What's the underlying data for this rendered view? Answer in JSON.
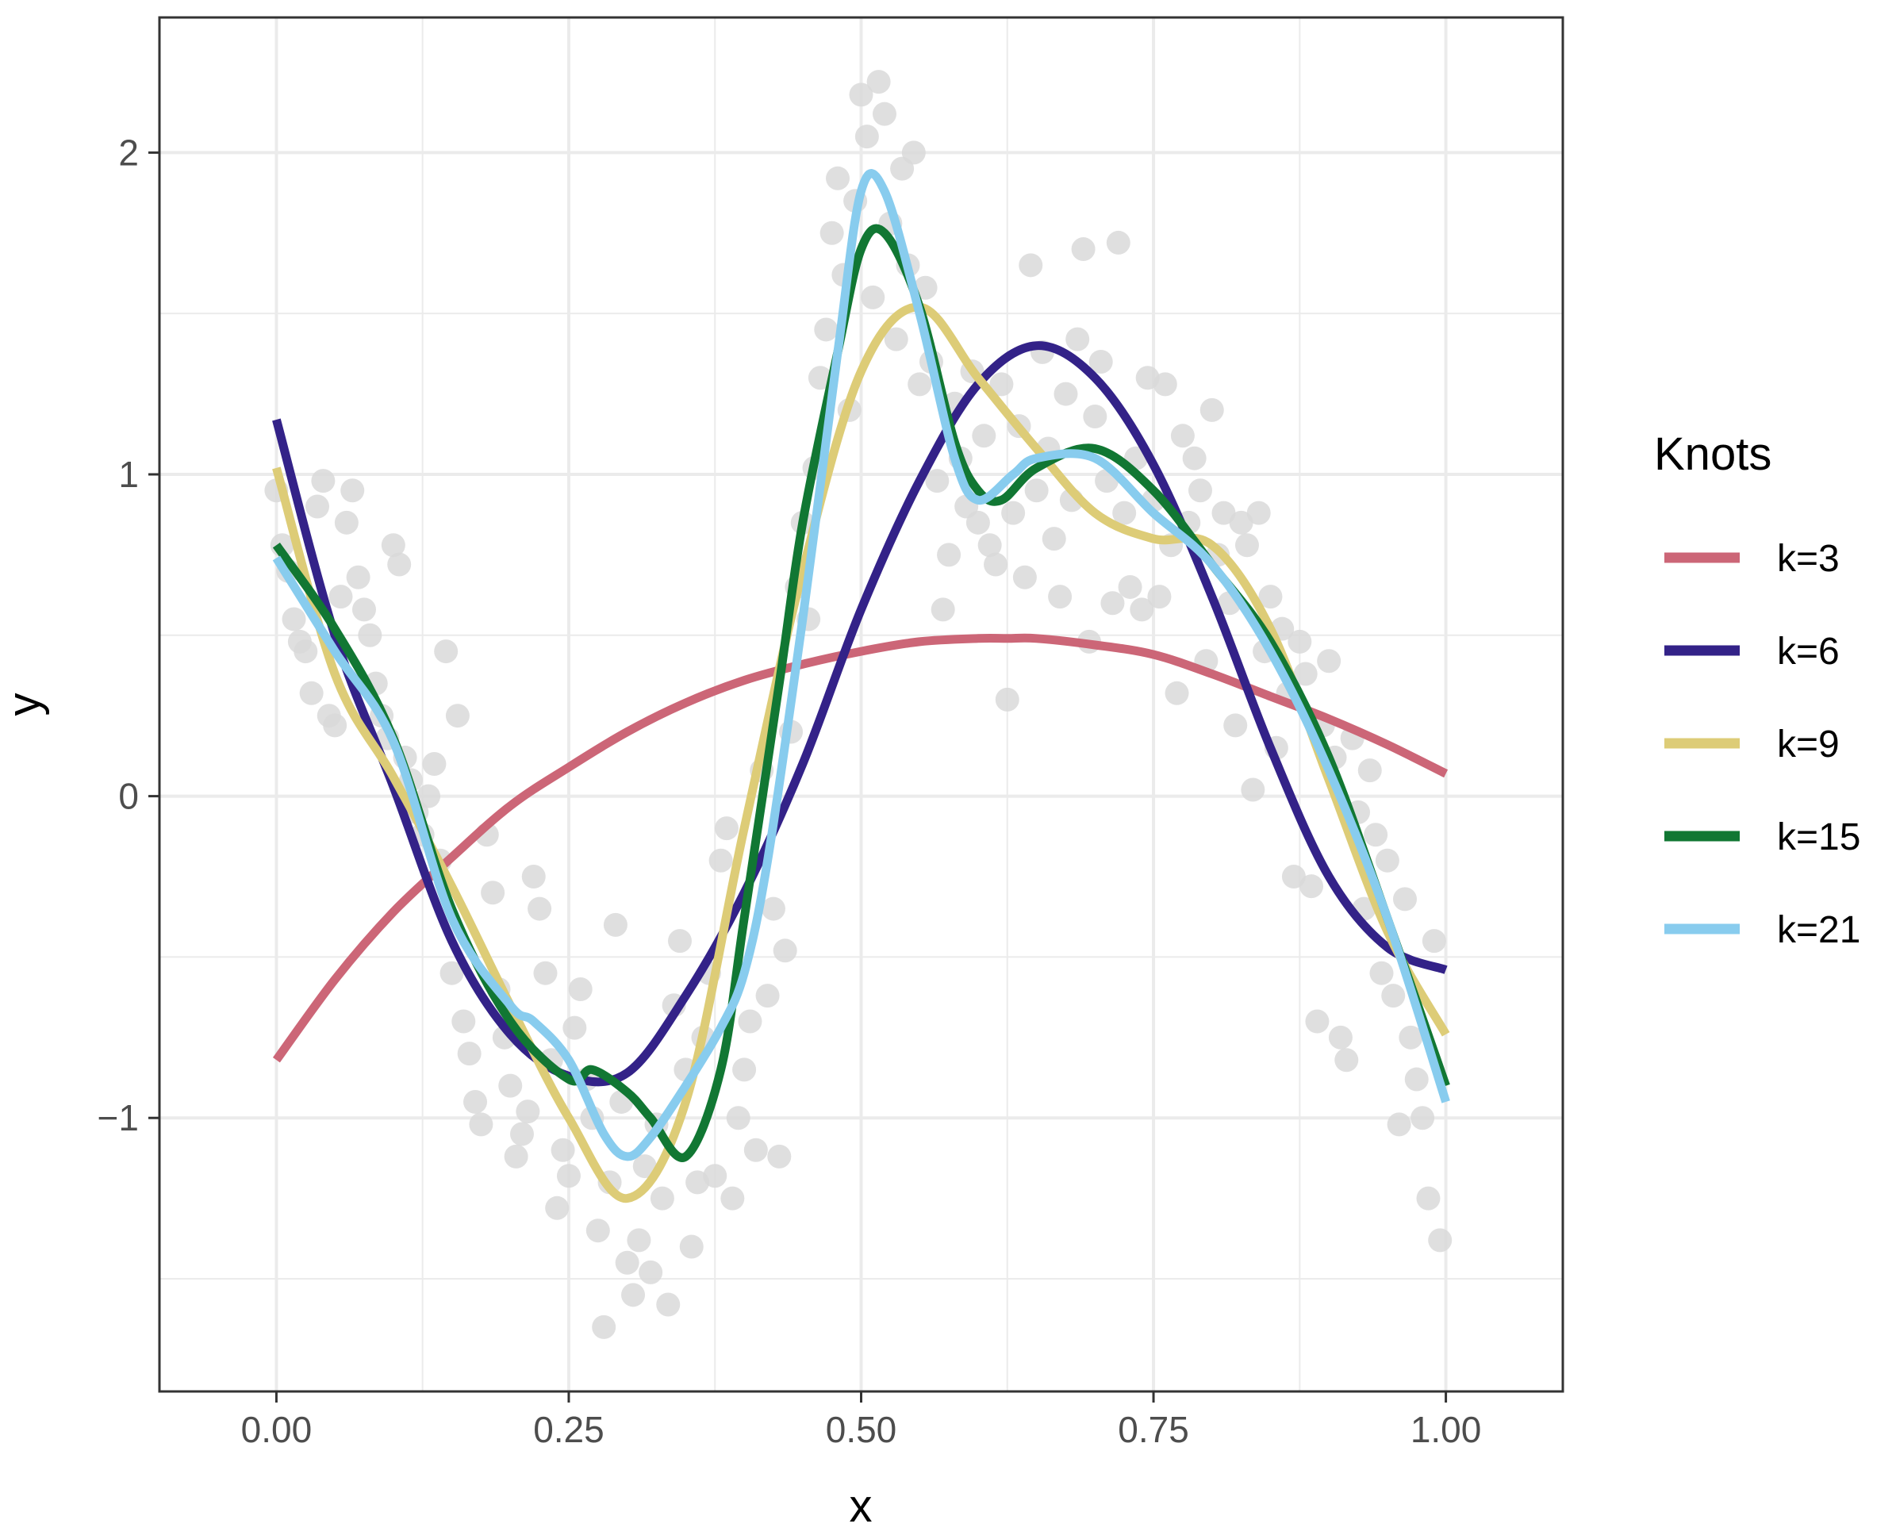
{
  "chart_data": {
    "type": "line",
    "xlabel": "x",
    "ylabel": "y",
    "xlim": [
      -0.1,
      1.1
    ],
    "ylim": [
      -1.85,
      2.42
    ],
    "x_ticks": [
      0.0,
      0.25,
      0.5,
      0.75,
      1.0
    ],
    "x_tick_labels": [
      "0.00",
      "0.25",
      "0.50",
      "0.75",
      "1.00"
    ],
    "y_ticks": [
      -1,
      0,
      1,
      2
    ],
    "y_tick_labels": [
      "−1",
      "0",
      "1",
      "2"
    ],
    "grid": true,
    "legend": {
      "title": "Knots",
      "placement": "right"
    },
    "scatter": {
      "color": "#d9d9d9",
      "points": [
        [
          0.0,
          0.95
        ],
        [
          0.005,
          0.78
        ],
        [
          0.01,
          0.7
        ],
        [
          0.015,
          0.55
        ],
        [
          0.02,
          0.48
        ],
        [
          0.025,
          0.45
        ],
        [
          0.03,
          0.32
        ],
        [
          0.035,
          0.9
        ],
        [
          0.04,
          0.98
        ],
        [
          0.045,
          0.25
        ],
        [
          0.05,
          0.22
        ],
        [
          0.055,
          0.62
        ],
        [
          0.06,
          0.85
        ],
        [
          0.065,
          0.95
        ],
        [
          0.07,
          0.68
        ],
        [
          0.075,
          0.58
        ],
        [
          0.08,
          0.5
        ],
        [
          0.085,
          0.35
        ],
        [
          0.09,
          0.25
        ],
        [
          0.095,
          0.18
        ],
        [
          0.1,
          0.78
        ],
        [
          0.105,
          0.72
        ],
        [
          0.11,
          0.12
        ],
        [
          0.115,
          0.05
        ],
        [
          0.12,
          -0.05
        ],
        [
          0.125,
          -0.12
        ],
        [
          0.13,
          0.0
        ],
        [
          0.135,
          0.1
        ],
        [
          0.14,
          -0.2
        ],
        [
          0.145,
          0.45
        ],
        [
          0.15,
          -0.55
        ],
        [
          0.155,
          0.25
        ],
        [
          0.16,
          -0.7
        ],
        [
          0.165,
          -0.8
        ],
        [
          0.17,
          -0.95
        ],
        [
          0.175,
          -1.02
        ],
        [
          0.18,
          -0.12
        ],
        [
          0.185,
          -0.3
        ],
        [
          0.19,
          -0.6
        ],
        [
          0.195,
          -0.75
        ],
        [
          0.2,
          -0.9
        ],
        [
          0.205,
          -1.12
        ],
        [
          0.21,
          -1.05
        ],
        [
          0.215,
          -0.98
        ],
        [
          0.22,
          -0.25
        ],
        [
          0.225,
          -0.35
        ],
        [
          0.23,
          -0.55
        ],
        [
          0.235,
          -0.82
        ],
        [
          0.24,
          -1.28
        ],
        [
          0.245,
          -1.1
        ],
        [
          0.25,
          -1.18
        ],
        [
          0.255,
          -0.72
        ],
        [
          0.26,
          -0.6
        ],
        [
          0.265,
          -0.88
        ],
        [
          0.27,
          -1.0
        ],
        [
          0.275,
          -1.35
        ],
        [
          0.28,
          -1.65
        ],
        [
          0.285,
          -1.2
        ],
        [
          0.29,
          -0.4
        ],
        [
          0.295,
          -0.95
        ],
        [
          0.3,
          -1.45
        ],
        [
          0.305,
          -1.55
        ],
        [
          0.31,
          -1.38
        ],
        [
          0.315,
          -1.15
        ],
        [
          0.32,
          -1.48
        ],
        [
          0.325,
          -1.02
        ],
        [
          0.33,
          -1.25
        ],
        [
          0.335,
          -1.58
        ],
        [
          0.34,
          -0.65
        ],
        [
          0.345,
          -0.45
        ],
        [
          0.35,
          -0.85
        ],
        [
          0.355,
          -1.4
        ],
        [
          0.36,
          -1.2
        ],
        [
          0.365,
          -0.75
        ],
        [
          0.37,
          -0.55
        ],
        [
          0.375,
          -1.18
        ],
        [
          0.38,
          -0.2
        ],
        [
          0.385,
          -0.1
        ],
        [
          0.39,
          -1.25
        ],
        [
          0.395,
          -1.0
        ],
        [
          0.4,
          -0.85
        ],
        [
          0.405,
          -0.7
        ],
        [
          0.41,
          -1.1
        ],
        [
          0.415,
          0.08
        ],
        [
          0.42,
          -0.62
        ],
        [
          0.425,
          -0.35
        ],
        [
          0.43,
          -1.12
        ],
        [
          0.435,
          -0.48
        ],
        [
          0.44,
          0.2
        ],
        [
          0.445,
          0.65
        ],
        [
          0.45,
          0.85
        ],
        [
          0.455,
          0.55
        ],
        [
          0.46,
          1.02
        ],
        [
          0.465,
          1.3
        ],
        [
          0.47,
          1.45
        ],
        [
          0.475,
          1.75
        ],
        [
          0.48,
          1.92
        ],
        [
          0.485,
          1.62
        ],
        [
          0.49,
          1.2
        ],
        [
          0.495,
          1.85
        ],
        [
          0.5,
          2.18
        ],
        [
          0.505,
          2.05
        ],
        [
          0.51,
          1.55
        ],
        [
          0.515,
          2.22
        ],
        [
          0.52,
          2.12
        ],
        [
          0.525,
          1.78
        ],
        [
          0.53,
          1.42
        ],
        [
          0.535,
          1.95
        ],
        [
          0.54,
          1.65
        ],
        [
          0.545,
          2.0
        ],
        [
          0.55,
          1.28
        ],
        [
          0.555,
          1.58
        ],
        [
          0.56,
          1.35
        ],
        [
          0.565,
          0.98
        ],
        [
          0.57,
          0.58
        ],
        [
          0.575,
          0.75
        ],
        [
          0.58,
          1.22
        ],
        [
          0.585,
          1.05
        ],
        [
          0.59,
          0.9
        ],
        [
          0.595,
          1.32
        ],
        [
          0.6,
          0.85
        ],
        [
          0.605,
          1.12
        ],
        [
          0.61,
          0.78
        ],
        [
          0.615,
          0.72
        ],
        [
          0.62,
          1.28
        ],
        [
          0.625,
          0.3
        ],
        [
          0.63,
          0.88
        ],
        [
          0.635,
          1.15
        ],
        [
          0.64,
          0.68
        ],
        [
          0.645,
          1.65
        ],
        [
          0.65,
          0.95
        ],
        [
          0.655,
          1.38
        ],
        [
          0.66,
          1.08
        ],
        [
          0.665,
          0.8
        ],
        [
          0.67,
          0.62
        ],
        [
          0.675,
          1.25
        ],
        [
          0.68,
          0.92
        ],
        [
          0.685,
          1.42
        ],
        [
          0.69,
          1.7
        ],
        [
          0.695,
          0.48
        ],
        [
          0.7,
          1.18
        ],
        [
          0.705,
          1.35
        ],
        [
          0.71,
          0.98
        ],
        [
          0.715,
          0.6
        ],
        [
          0.72,
          1.72
        ],
        [
          0.725,
          0.88
        ],
        [
          0.73,
          0.65
        ],
        [
          0.735,
          1.05
        ],
        [
          0.74,
          0.58
        ],
        [
          0.745,
          1.3
        ],
        [
          0.75,
          0.92
        ],
        [
          0.755,
          0.62
        ],
        [
          0.76,
          1.28
        ],
        [
          0.765,
          0.78
        ],
        [
          0.77,
          0.32
        ],
        [
          0.775,
          1.12
        ],
        [
          0.78,
          0.85
        ],
        [
          0.785,
          1.05
        ],
        [
          0.79,
          0.95
        ],
        [
          0.795,
          0.42
        ],
        [
          0.8,
          1.2
        ],
        [
          0.805,
          0.75
        ],
        [
          0.81,
          0.88
        ],
        [
          0.815,
          0.6
        ],
        [
          0.82,
          0.22
        ],
        [
          0.825,
          0.85
        ],
        [
          0.83,
          0.78
        ],
        [
          0.835,
          0.02
        ],
        [
          0.84,
          0.88
        ],
        [
          0.845,
          0.45
        ],
        [
          0.85,
          0.62
        ],
        [
          0.855,
          0.15
        ],
        [
          0.86,
          0.52
        ],
        [
          0.865,
          0.32
        ],
        [
          0.87,
          -0.25
        ],
        [
          0.875,
          0.48
        ],
        [
          0.88,
          0.38
        ],
        [
          0.885,
          -0.28
        ],
        [
          0.89,
          -0.7
        ],
        [
          0.895,
          0.22
        ],
        [
          0.9,
          0.42
        ],
        [
          0.905,
          0.12
        ],
        [
          0.91,
          -0.75
        ],
        [
          0.915,
          -0.82
        ],
        [
          0.92,
          0.18
        ],
        [
          0.925,
          -0.05
        ],
        [
          0.93,
          -0.35
        ],
        [
          0.935,
          0.08
        ],
        [
          0.94,
          -0.12
        ],
        [
          0.945,
          -0.55
        ],
        [
          0.95,
          -0.2
        ],
        [
          0.955,
          -0.62
        ],
        [
          0.96,
          -1.02
        ],
        [
          0.965,
          -0.32
        ],
        [
          0.97,
          -0.75
        ],
        [
          0.975,
          -0.88
        ],
        [
          0.98,
          -1.0
        ],
        [
          0.985,
          -1.25
        ],
        [
          0.99,
          -0.45
        ],
        [
          0.995,
          -1.38
        ]
      ]
    },
    "series": [
      {
        "name": "k=3",
        "color": "#cc6677",
        "x": [
          0,
          0.05,
          0.1,
          0.15,
          0.2,
          0.25,
          0.3,
          0.35,
          0.4,
          0.45,
          0.5,
          0.55,
          0.6,
          0.625,
          0.65,
          0.7,
          0.75,
          0.8,
          0.85,
          0.9,
          0.95,
          1.0
        ],
        "y": [
          -0.82,
          -0.57,
          -0.36,
          -0.19,
          -0.03,
          0.09,
          0.2,
          0.29,
          0.36,
          0.41,
          0.45,
          0.48,
          0.49,
          0.49,
          0.49,
          0.47,
          0.44,
          0.38,
          0.31,
          0.24,
          0.16,
          0.07
        ]
      },
      {
        "name": "k=6",
        "color": "#332288",
        "x": [
          0,
          0.05,
          0.1,
          0.15,
          0.2,
          0.25,
          0.3,
          0.35,
          0.4,
          0.45,
          0.5,
          0.55,
          0.6,
          0.65,
          0.7,
          0.75,
          0.8,
          0.85,
          0.9,
          0.95,
          1.0
        ],
        "y": [
          1.17,
          0.5,
          0.03,
          -0.45,
          -0.74,
          -0.87,
          -0.86,
          -0.62,
          -0.3,
          0.1,
          0.58,
          0.98,
          1.28,
          1.4,
          1.3,
          1.03,
          0.62,
          0.15,
          -0.25,
          -0.47,
          -0.54
        ]
      },
      {
        "name": "k=9",
        "color": "#ddcc77",
        "x": [
          0,
          0.05,
          0.1,
          0.15,
          0.2,
          0.25,
          0.3,
          0.35,
          0.4,
          0.45,
          0.5,
          0.55,
          0.6,
          0.65,
          0.7,
          0.75,
          0.8,
          0.85,
          0.9,
          0.95,
          1.0
        ],
        "y": [
          1.02,
          0.38,
          0.06,
          -0.28,
          -0.65,
          -1.0,
          -1.25,
          -0.95,
          -0.1,
          0.7,
          1.32,
          1.52,
          1.3,
          1.08,
          0.88,
          0.8,
          0.78,
          0.52,
          0.05,
          -0.42,
          -0.74
        ]
      },
      {
        "name": "k=15",
        "color": "#117733",
        "x": [
          0,
          0.05,
          0.1,
          0.15,
          0.2,
          0.25,
          0.27,
          0.3,
          0.32,
          0.35,
          0.38,
          0.4,
          0.43,
          0.45,
          0.48,
          0.5,
          0.52,
          0.55,
          0.58,
          0.6,
          0.62,
          0.65,
          0.7,
          0.75,
          0.8,
          0.85,
          0.9,
          0.95,
          1.0
        ],
        "y": [
          0.78,
          0.52,
          0.18,
          -0.35,
          -0.7,
          -0.88,
          -0.85,
          -0.92,
          -1.0,
          -1.12,
          -0.85,
          -0.38,
          0.35,
          0.85,
          1.38,
          1.7,
          1.75,
          1.52,
          1.1,
          0.95,
          0.92,
          1.02,
          1.08,
          0.95,
          0.72,
          0.48,
          0.12,
          -0.38,
          -0.9
        ]
      },
      {
        "name": "k=21",
        "color": "#88ccee",
        "x": [
          0,
          0.05,
          0.1,
          0.15,
          0.2,
          0.22,
          0.25,
          0.28,
          0.3,
          0.32,
          0.35,
          0.38,
          0.4,
          0.42,
          0.45,
          0.48,
          0.5,
          0.52,
          0.55,
          0.58,
          0.6,
          0.63,
          0.65,
          0.7,
          0.75,
          0.8,
          0.85,
          0.9,
          0.95,
          1.0
        ],
        "y": [
          0.74,
          0.45,
          0.17,
          -0.38,
          -0.65,
          -0.7,
          -0.82,
          -1.05,
          -1.12,
          -1.06,
          -0.9,
          -0.72,
          -0.55,
          -0.2,
          0.55,
          1.38,
          1.88,
          1.88,
          1.5,
          1.05,
          0.92,
          1.0,
          1.05,
          1.05,
          0.88,
          0.72,
          0.45,
          0.08,
          -0.38,
          -0.95
        ]
      }
    ]
  }
}
